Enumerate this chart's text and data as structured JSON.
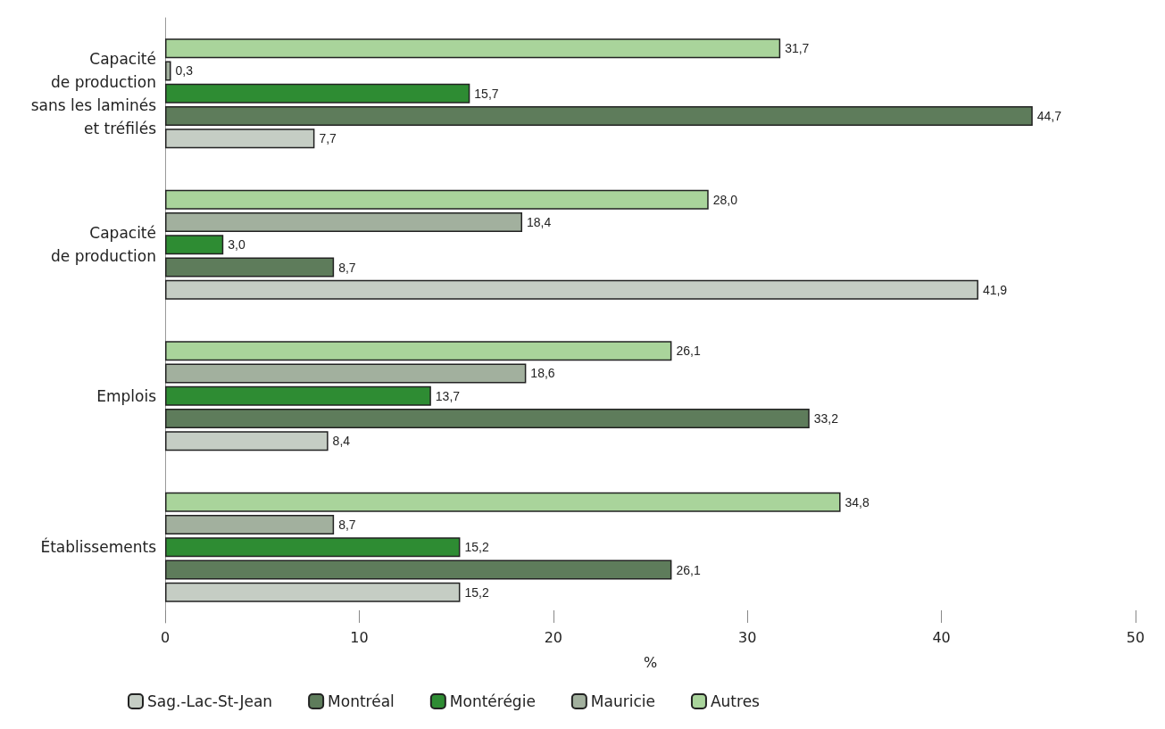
{
  "chart_data": {
    "type": "bar",
    "orientation": "horizontal",
    "xlabel": "%",
    "categories": [
      "Capacité\nde production\nsans les laminés\net tréfilés",
      "Capacité\nde production",
      "Emplois",
      "Établissements"
    ],
    "series": [
      {
        "name": "Sag.-Lac-St-Jean",
        "color": "#c5cdc4",
        "values": [
          7.7,
          41.9,
          8.4,
          15.2
        ],
        "value_labels": [
          "7,7",
          "41,9",
          "8,4",
          "15,2"
        ]
      },
      {
        "name": "Montréal",
        "color": "#5e7c5b",
        "values": [
          44.7,
          8.7,
          33.2,
          26.1
        ],
        "value_labels": [
          "44,7",
          "8,7",
          "33,2",
          "26,1"
        ]
      },
      {
        "name": "Montérégie",
        "color": "#2e8c33",
        "values": [
          15.7,
          3.0,
          13.7,
          15.2
        ],
        "value_labels": [
          "15,7",
          "3,0",
          "13,7",
          "15,2"
        ]
      },
      {
        "name": "Mauricie",
        "color": "#a2b09e",
        "values": [
          0.3,
          18.4,
          18.6,
          8.7
        ],
        "value_labels": [
          "0,3",
          "18,4",
          "18,6",
          "8,7"
        ]
      },
      {
        "name": "Autres",
        "color": "#a9d49b",
        "values": [
          31.7,
          28.0,
          26.1,
          34.8
        ],
        "value_labels": [
          "31,7",
          "28,0",
          "26,1",
          "34,8"
        ]
      }
    ],
    "xlim": [
      0,
      50
    ],
    "xticks": [
      0,
      10,
      20,
      30,
      40,
      50
    ],
    "grid": false,
    "legend": "bottom"
  }
}
